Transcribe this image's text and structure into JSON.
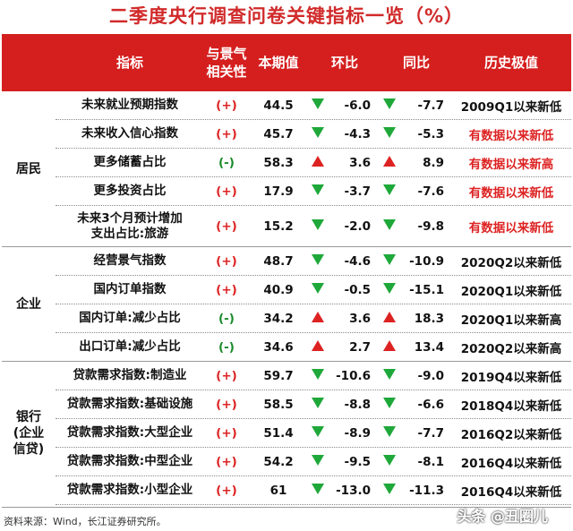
{
  "title": "二季度央行调查问卷关键指标一览（%）",
  "headers": {
    "indicator": "指标",
    "correlation": [
      "与景气",
      "相关性"
    ],
    "current": "本期值",
    "qoq": "环比",
    "yoy": "同比",
    "historical": "历史极值"
  },
  "colors": {
    "header_bg": "#d51f1f",
    "title": "#d12a2a",
    "up_arrow": "#dd2222",
    "down_arrow": "#1fa83a",
    "positive_correlation": "#dd2222",
    "negative_correlation": "#1a8a2a"
  },
  "chart_data": {
    "type": "table",
    "title": "二季度央行调查问卷关键指标一览（%）",
    "columns": [
      "指标",
      "与景气相关性",
      "本期值",
      "环比",
      "同比",
      "历史极值"
    ],
    "groups": [
      {
        "name": "居民",
        "rows": [
          {
            "indicator": "未来就业预期指数",
            "correlation": "(+)",
            "current": "44.5",
            "qoq_dir": "down",
            "qoq": "-6.0",
            "yoy_dir": "down",
            "yoy": "-7.7",
            "historical": "2009Q1以来新低",
            "hist_highlight": false
          },
          {
            "indicator": "未来收入信心指数",
            "correlation": "(+)",
            "current": "45.7",
            "qoq_dir": "down",
            "qoq": "-4.3",
            "yoy_dir": "down",
            "yoy": "-5.3",
            "historical": "有数据以来新低",
            "hist_highlight": true
          },
          {
            "indicator": "更多储蓄占比",
            "correlation": "(-)",
            "current": "58.3",
            "qoq_dir": "up",
            "qoq": "3.6",
            "yoy_dir": "up",
            "yoy": "8.9",
            "historical": "有数据以来新高",
            "hist_highlight": true
          },
          {
            "indicator": "更多投资占比",
            "correlation": "(+)",
            "current": "17.9",
            "qoq_dir": "down",
            "qoq": "-3.7",
            "yoy_dir": "down",
            "yoy": "-7.6",
            "historical": "有数据以来新低",
            "hist_highlight": true
          },
          {
            "indicator": "未来3个月预计增加支出占比:旅游",
            "indicator_lines": [
              "未来3个月预计增加",
              "支出占比:旅游"
            ],
            "correlation": "(+)",
            "current": "15.2",
            "qoq_dir": "down",
            "qoq": "-2.0",
            "yoy_dir": "down",
            "yoy": "-9.8",
            "historical": "有数据以来新低",
            "hist_highlight": true
          }
        ]
      },
      {
        "name": "企业",
        "rows": [
          {
            "indicator": "经营景气指数",
            "correlation": "(+)",
            "current": "48.7",
            "qoq_dir": "down",
            "qoq": "-4.6",
            "yoy_dir": "down",
            "yoy": "-10.9",
            "historical": "2020Q2以来新低",
            "hist_highlight": false
          },
          {
            "indicator": "国内订单指数",
            "correlation": "(+)",
            "current": "40.9",
            "qoq_dir": "down",
            "qoq": "-0.5",
            "yoy_dir": "down",
            "yoy": "-15.1",
            "historical": "2020Q1以来新低",
            "hist_highlight": false
          },
          {
            "indicator": "国内订单:减少占比",
            "correlation": "(-)",
            "current": "34.2",
            "qoq_dir": "up",
            "qoq": "3.6",
            "yoy_dir": "up",
            "yoy": "18.3",
            "historical": "2020Q1以来新高",
            "hist_highlight": false
          },
          {
            "indicator": "出口订单:减少占比",
            "correlation": "(-)",
            "current": "34.6",
            "qoq_dir": "up",
            "qoq": "2.7",
            "yoy_dir": "up",
            "yoy": "13.4",
            "historical": "2020Q2以来新高",
            "hist_highlight": false
          }
        ]
      },
      {
        "name": "银行(企业信贷)",
        "name_lines": [
          "银行",
          "(企业",
          "信贷)"
        ],
        "rows": [
          {
            "indicator": "贷款需求指数:制造业",
            "correlation": "(+)",
            "current": "59.7",
            "qoq_dir": "down",
            "qoq": "-10.6",
            "yoy_dir": "down",
            "yoy": "-9.0",
            "historical": "2019Q4以来新低",
            "hist_highlight": false
          },
          {
            "indicator": "贷款需求指数:基础设施",
            "correlation": "(+)",
            "current": "58.5",
            "qoq_dir": "down",
            "qoq": "-8.8",
            "yoy_dir": "down",
            "yoy": "-6.6",
            "historical": "2018Q4以来新低",
            "hist_highlight": false
          },
          {
            "indicator": "贷款需求指数:大型企业",
            "correlation": "(+)",
            "current": "51.4",
            "qoq_dir": "down",
            "qoq": "-8.9",
            "yoy_dir": "down",
            "yoy": "-7.7",
            "historical": "2016Q2以来新低",
            "hist_highlight": false
          },
          {
            "indicator": "贷款需求指数:中型企业",
            "correlation": "(+)",
            "current": "54.2",
            "qoq_dir": "down",
            "qoq": "-9.5",
            "yoy_dir": "down",
            "yoy": "-8.1",
            "historical": "2016Q4以来新低",
            "hist_highlight": false
          },
          {
            "indicator": "贷款需求指数:小型企业",
            "correlation": "(+)",
            "current": "61",
            "qoq_dir": "down",
            "qoq": "-13.0",
            "yoy_dir": "down",
            "yoy": "-11.3",
            "historical": "2016Q4以来新低",
            "hist_highlight": false
          }
        ]
      }
    ]
  },
  "footer": "资料来源：Wind，长江证券研究所。",
  "watermark": "头条 @丑圈儿"
}
